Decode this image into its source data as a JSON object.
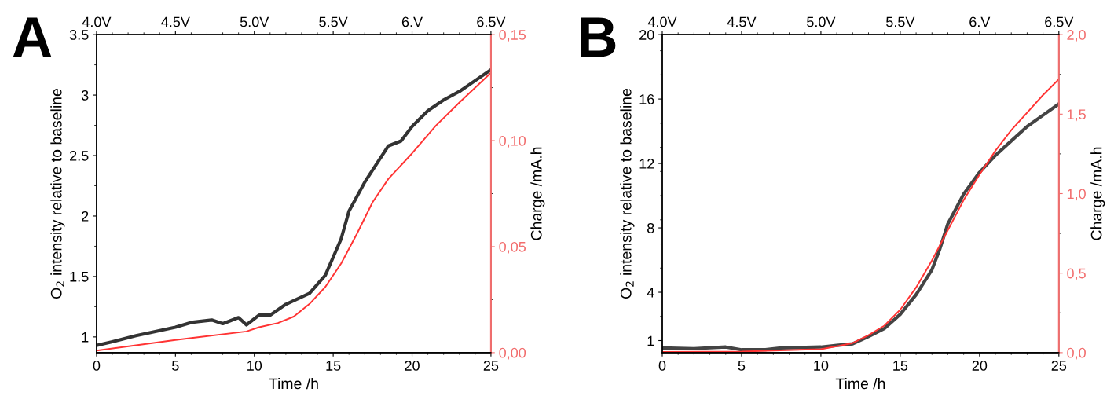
{
  "chart_data": [
    {
      "type": "line",
      "title": "A",
      "xlabel": "Time /h",
      "ylabel": "O$_{2}$ intensity relative to baseline",
      "y2label": "Charge /mA.h",
      "xlim": [
        0,
        25
      ],
      "xticks": [
        0,
        5,
        10,
        15,
        20,
        25
      ],
      "ylim": [
        0.87,
        3.5
      ],
      "yticks": [
        1,
        1.5,
        2,
        2.5,
        3,
        3.5
      ],
      "y2lim": [
        0,
        0.15
      ],
      "y2ticks": [
        {
          "value": 0,
          "label": "0,00"
        },
        {
          "value": 0.05,
          "label": "0,05"
        },
        {
          "value": 0.1,
          "label": "0,10"
        },
        {
          "value": 0.15,
          "label": "0,15"
        }
      ],
      "x2lim": [
        4.0,
        6.5
      ],
      "x2ticks": [
        {
          "value": 4.0,
          "label": "4.0V"
        },
        {
          "value": 4.5,
          "label": "4.5V"
        },
        {
          "value": 5.0,
          "label": "5.0V"
        },
        {
          "value": 5.5,
          "label": "5.5V"
        },
        {
          "value": 6.0,
          "label": "6.V"
        },
        {
          "value": 6.5,
          "label": "6.5V"
        }
      ],
      "grid": false,
      "legend": false,
      "series": [
        {
          "color": "#333333",
          "x": [
            0,
            1,
            2.5,
            5,
            6,
            7.3,
            8,
            9,
            9.5,
            10.3,
            11,
            12,
            13.5,
            14.5,
            15.5,
            16,
            17,
            17.5,
            18.5,
            19.3,
            20,
            21,
            22,
            23,
            24,
            25
          ],
          "values": [
            0.93,
            0.96,
            1.01,
            1.08,
            1.12,
            1.14,
            1.11,
            1.16,
            1.1,
            1.18,
            1.18,
            1.27,
            1.36,
            1.51,
            1.81,
            2.04,
            2.28,
            2.38,
            2.58,
            2.62,
            2.74,
            2.87,
            2.96,
            3.03,
            3.12,
            3.21
          ]
        },
        {
          "color": "#ff3333",
          "axis": "y2",
          "x": [
            0,
            5,
            9.5,
            10.3,
            11.5,
            12.5,
            13.5,
            14.5,
            15.5,
            16.5,
            17.5,
            18.5,
            20,
            21.5,
            23,
            25
          ],
          "values": [
            0.001,
            0.006,
            0.01,
            0.012,
            0.014,
            0.017,
            0.023,
            0.031,
            0.042,
            0.056,
            0.071,
            0.082,
            0.094,
            0.107,
            0.118,
            0.132
          ]
        }
      ]
    },
    {
      "type": "line",
      "title": "B",
      "xlabel": "Time /h",
      "ylabel": "O$_{2}$ intensity relative to baseline",
      "y2label": "Charge /mA.h",
      "xlim": [
        0,
        25
      ],
      "xticks": [
        0,
        5,
        10,
        15,
        20,
        25
      ],
      "ylim": [
        0.25,
        20
      ],
      "yticks": [
        1,
        4,
        8,
        12,
        16,
        20
      ],
      "y2lim": [
        0,
        2
      ],
      "y2ticks": [
        {
          "value": 0,
          "label": "0,0"
        },
        {
          "value": 0.5,
          "label": "0,5"
        },
        {
          "value": 1,
          "label": "1,0"
        },
        {
          "value": 1.5,
          "label": "1,5"
        },
        {
          "value": 2,
          "label": "2,0"
        }
      ],
      "x2lim": [
        4.0,
        6.5
      ],
      "x2ticks": [
        {
          "value": 4.0,
          "label": "4.0V"
        },
        {
          "value": 4.5,
          "label": "4.5V"
        },
        {
          "value": 5.0,
          "label": "5.0V"
        },
        {
          "value": 5.5,
          "label": "5.5V"
        },
        {
          "value": 6.0,
          "label": "6.V"
        },
        {
          "value": 6.5,
          "label": "6.5V"
        }
      ],
      "grid": false,
      "legend": false,
      "series": [
        {
          "color": "#444444",
          "x": [
            0,
            2,
            4,
            5,
            6.5,
            7.5,
            10,
            11,
            12,
            13,
            14,
            15,
            16,
            17,
            17.5,
            18,
            19,
            20,
            21,
            22,
            23,
            24,
            25
          ],
          "values": [
            0.54,
            0.5,
            0.6,
            0.43,
            0.43,
            0.54,
            0.6,
            0.7,
            0.8,
            1.25,
            1.75,
            2.63,
            3.85,
            5.4,
            6.7,
            8.25,
            10.1,
            11.45,
            12.5,
            13.4,
            14.3,
            15.0,
            15.7
          ]
        },
        {
          "color": "#ff3333",
          "axis": "y2",
          "x": [
            0,
            5,
            10,
            11,
            12,
            13,
            14,
            15,
            16,
            17,
            18,
            19,
            20,
            21,
            22,
            23,
            24,
            25
          ],
          "values": [
            0.005,
            0.007,
            0.022,
            0.04,
            0.06,
            0.11,
            0.17,
            0.27,
            0.41,
            0.58,
            0.77,
            0.96,
            1.12,
            1.27,
            1.4,
            1.51,
            1.62,
            1.72
          ]
        }
      ]
    }
  ]
}
